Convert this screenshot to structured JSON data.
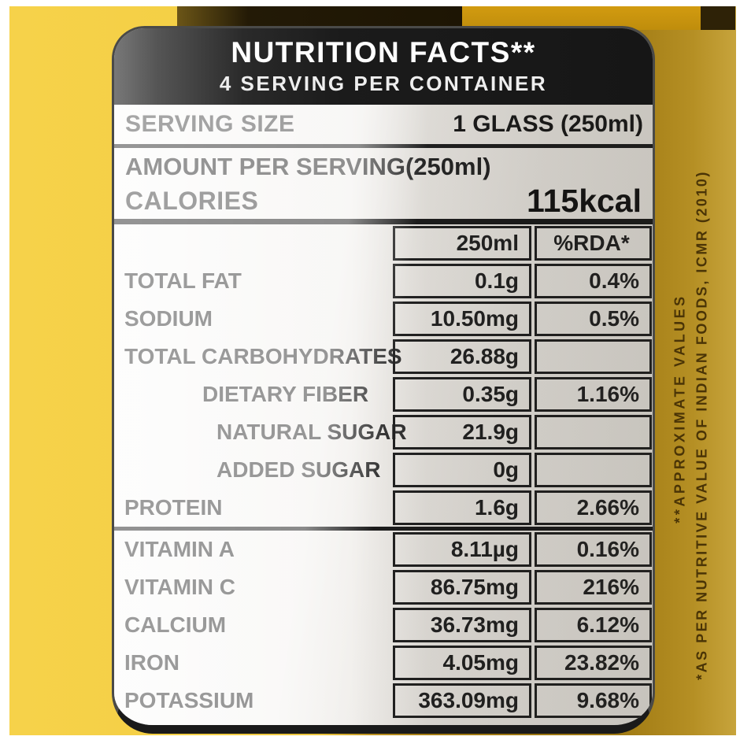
{
  "header": {
    "title": "NUTRITION FACTS**",
    "subtitle": "4 SERVING PER CONTAINER"
  },
  "serving": {
    "label": "SERVING SIZE",
    "value": "1 GLASS (250ml)"
  },
  "amount_per_serving_label": "AMOUNT PER SERVING(250ml)",
  "calories": {
    "label": "CALORIES",
    "value": "115kcal"
  },
  "table": {
    "columns": [
      "250ml",
      "%RDA*"
    ],
    "rows": [
      {
        "name": "TOTAL FAT",
        "amount": "0.1g",
        "rda": "0.4%",
        "indent": 0
      },
      {
        "name": "SODIUM",
        "amount": "10.50mg",
        "rda": "0.5%",
        "indent": 0
      },
      {
        "name": "TOTAL CARBOHYDRATES",
        "amount": "26.88g",
        "rda": "",
        "indent": 0
      },
      {
        "name": "DIETARY FIBER",
        "amount": "0.35g",
        "rda": "1.16%",
        "indent": 1
      },
      {
        "name": "NATURAL SUGAR",
        "amount": "21.9g",
        "rda": "",
        "indent": 2
      },
      {
        "name": "ADDED SUGAR",
        "amount": "0g",
        "rda": "",
        "indent": 2
      },
      {
        "name": "PROTEIN",
        "amount": "1.6g",
        "rda": "2.66%",
        "indent": 0,
        "separator_after": true
      },
      {
        "name": "VITAMIN A",
        "amount": "8.11µg",
        "rda": "0.16%",
        "indent": 0
      },
      {
        "name": "VITAMIN C",
        "amount": "86.75mg",
        "rda": "216%",
        "indent": 0
      },
      {
        "name": "CALCIUM",
        "amount": "36.73mg",
        "rda": "6.12%",
        "indent": 0
      },
      {
        "name": "IRON",
        "amount": "4.05mg",
        "rda": "23.82%",
        "indent": 0
      },
      {
        "name": "POTASSIUM",
        "amount": "363.09mg",
        "rda": "9.68%",
        "indent": 0
      }
    ]
  },
  "side_notes": {
    "approximate": "**APPROXIMATE VALUES",
    "source": "*AS PER NUTRITIVE VALUE OF INDIAN FOODS, ICMR (2010)"
  },
  "colors": {
    "background_yellow": "#f6d24a",
    "background_gold": "#9d7711",
    "label_background": "#f1efec",
    "header_background": "#1b1b1b",
    "text_dark": "#1b1b1b",
    "side_note_text": "#4a3406"
  }
}
